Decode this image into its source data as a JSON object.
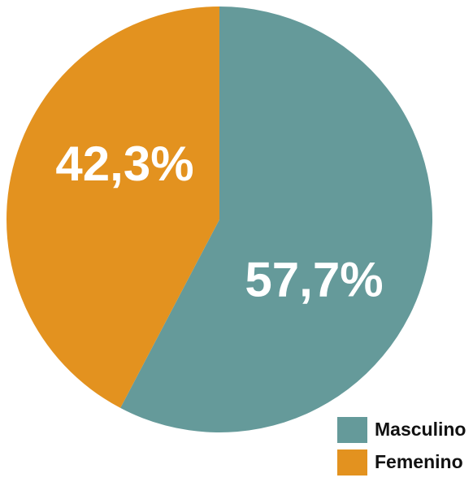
{
  "chart_data": {
    "type": "pie",
    "categories": [
      "Masculino",
      "Femenino"
    ],
    "values": [
      57.7,
      42.3
    ],
    "value_labels": [
      "57,7%",
      "42,3%"
    ],
    "colors": [
      "#659a9a",
      "#e3921f"
    ]
  }
}
